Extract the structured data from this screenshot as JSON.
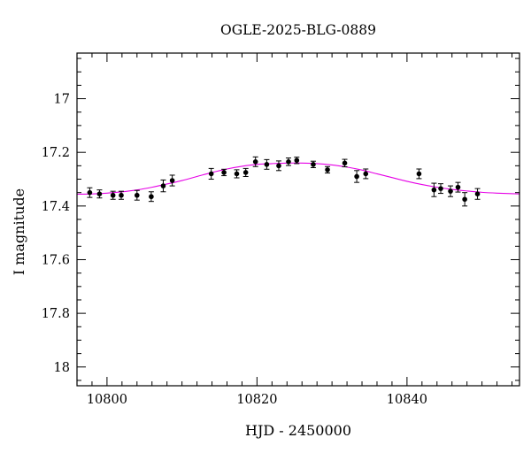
{
  "chart_data": {
    "type": "scatter",
    "title": "OGLE-2025-BLG-0889",
    "xlabel": "HJD - 2450000",
    "ylabel": "I magnitude",
    "xlim": [
      10796,
      10855
    ],
    "ylim": [
      18.07,
      16.83
    ],
    "y_inverted": true,
    "grid": false,
    "x_major_ticks": [
      10800,
      10820,
      10840
    ],
    "x_minor_step": 2,
    "y_major_ticks": [
      17,
      17.2,
      17.4,
      17.6,
      17.8,
      18
    ],
    "y_tick_labels": [
      "17",
      "17.2",
      "17.4",
      "17.6",
      "17.8",
      "18"
    ],
    "y_minor_step": 0.05,
    "colors": {
      "model": "#e600e6",
      "points": "#000000"
    },
    "series": [
      {
        "kind": "points_with_errorbars",
        "x": [
          10797.7,
          10799.0,
          10800.8,
          10801.9,
          10804.0,
          10805.9,
          10807.5,
          10808.7,
          10813.9,
          10815.6,
          10817.3,
          10818.5,
          10819.8,
          10821.3,
          10822.9,
          10824.2,
          10825.3,
          10827.5,
          10829.4,
          10831.7,
          10833.3,
          10834.5,
          10841.6,
          10843.6,
          10844.5,
          10845.8,
          10846.8,
          10847.7,
          10849.4
        ],
        "y": [
          17.35,
          17.355,
          17.36,
          17.36,
          17.36,
          17.365,
          17.325,
          17.305,
          17.28,
          17.275,
          17.28,
          17.275,
          17.235,
          17.245,
          17.25,
          17.235,
          17.23,
          17.245,
          17.265,
          17.24,
          17.29,
          17.28,
          17.28,
          17.34,
          17.335,
          17.345,
          17.33,
          17.375,
          17.355
        ],
        "err": [
          0.018,
          0.015,
          0.015,
          0.015,
          0.018,
          0.018,
          0.022,
          0.02,
          0.02,
          0.012,
          0.015,
          0.015,
          0.018,
          0.018,
          0.018,
          0.014,
          0.012,
          0.012,
          0.012,
          0.014,
          0.022,
          0.018,
          0.018,
          0.025,
          0.018,
          0.02,
          0.018,
          0.025,
          0.02
        ]
      },
      {
        "kind": "model_curve",
        "x": [
          10796,
          10798,
          10800,
          10802,
          10804,
          10806,
          10808,
          10810,
          10812,
          10814,
          10816,
          10818,
          10820,
          10822,
          10824,
          10826,
          10828,
          10830,
          10832,
          10834,
          10836,
          10838,
          10840,
          10842,
          10844,
          10846,
          10848,
          10850,
          10852,
          10855
        ],
        "y": [
          17.356,
          17.355,
          17.352,
          17.347,
          17.34,
          17.33,
          17.318,
          17.305,
          17.29,
          17.275,
          17.262,
          17.252,
          17.245,
          17.242,
          17.24,
          17.24,
          17.242,
          17.247,
          17.255,
          17.266,
          17.28,
          17.294,
          17.308,
          17.32,
          17.33,
          17.338,
          17.344,
          17.349,
          17.352,
          17.355
        ]
      }
    ]
  }
}
